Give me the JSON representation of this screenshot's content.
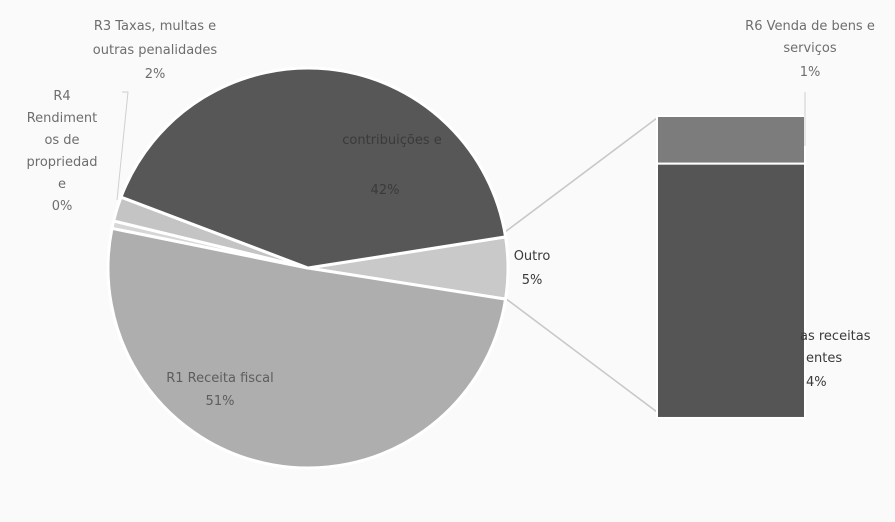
{
  "chart_data": {
    "type": "pie",
    "subtype": "bar-of-pie",
    "pie": {
      "slices": [
        {
          "label": "R1 Receita fiscal",
          "value": 51,
          "percent_text": "51%",
          "color": "#aeaeae"
        },
        {
          "label": "R2 Contribuições sociais e ...",
          "value": 42,
          "percent_text": "42%",
          "color": "#575757"
        },
        {
          "label": "R3 Taxas, multas e outras penalidades",
          "value": 2,
          "percent_text": "2%",
          "color": "#c4c4c4"
        },
        {
          "label": "R4 Rendimentos de propriedade",
          "value": 0,
          "percent_text": "0%",
          "color": "#d6d6d6"
        },
        {
          "label": "Outro",
          "value": 5,
          "percent_text": "5%",
          "color": "#c9c9c9"
        }
      ]
    },
    "bar": {
      "segments": [
        {
          "label": "R6 Venda de bens e serviços",
          "value": 1,
          "percent_text": "1%",
          "color": "#7c7c7c"
        },
        {
          "label": "Outras receitas correntes",
          "value": 4,
          "percent_text": "4%",
          "color": "#555555"
        }
      ]
    },
    "label_text": {
      "r1": [
        "R1 Receita fiscal",
        "51%"
      ],
      "r2": [
        "contribuições e",
        "42%"
      ],
      "r3": [
        "R3 Taxas, multas e",
        "outras penalidades",
        "2%"
      ],
      "r4": [
        "R4",
        "Rendiment",
        "os de",
        "propriedad",
        "e",
        "0%"
      ],
      "outro": [
        "Outro",
        "5%"
      ],
      "r6": [
        "R6 Venda de bens e",
        "serviços",
        "1%"
      ],
      "r7": [
        "as receitas",
        "entes",
        "4%"
      ]
    },
    "legend": "none"
  }
}
